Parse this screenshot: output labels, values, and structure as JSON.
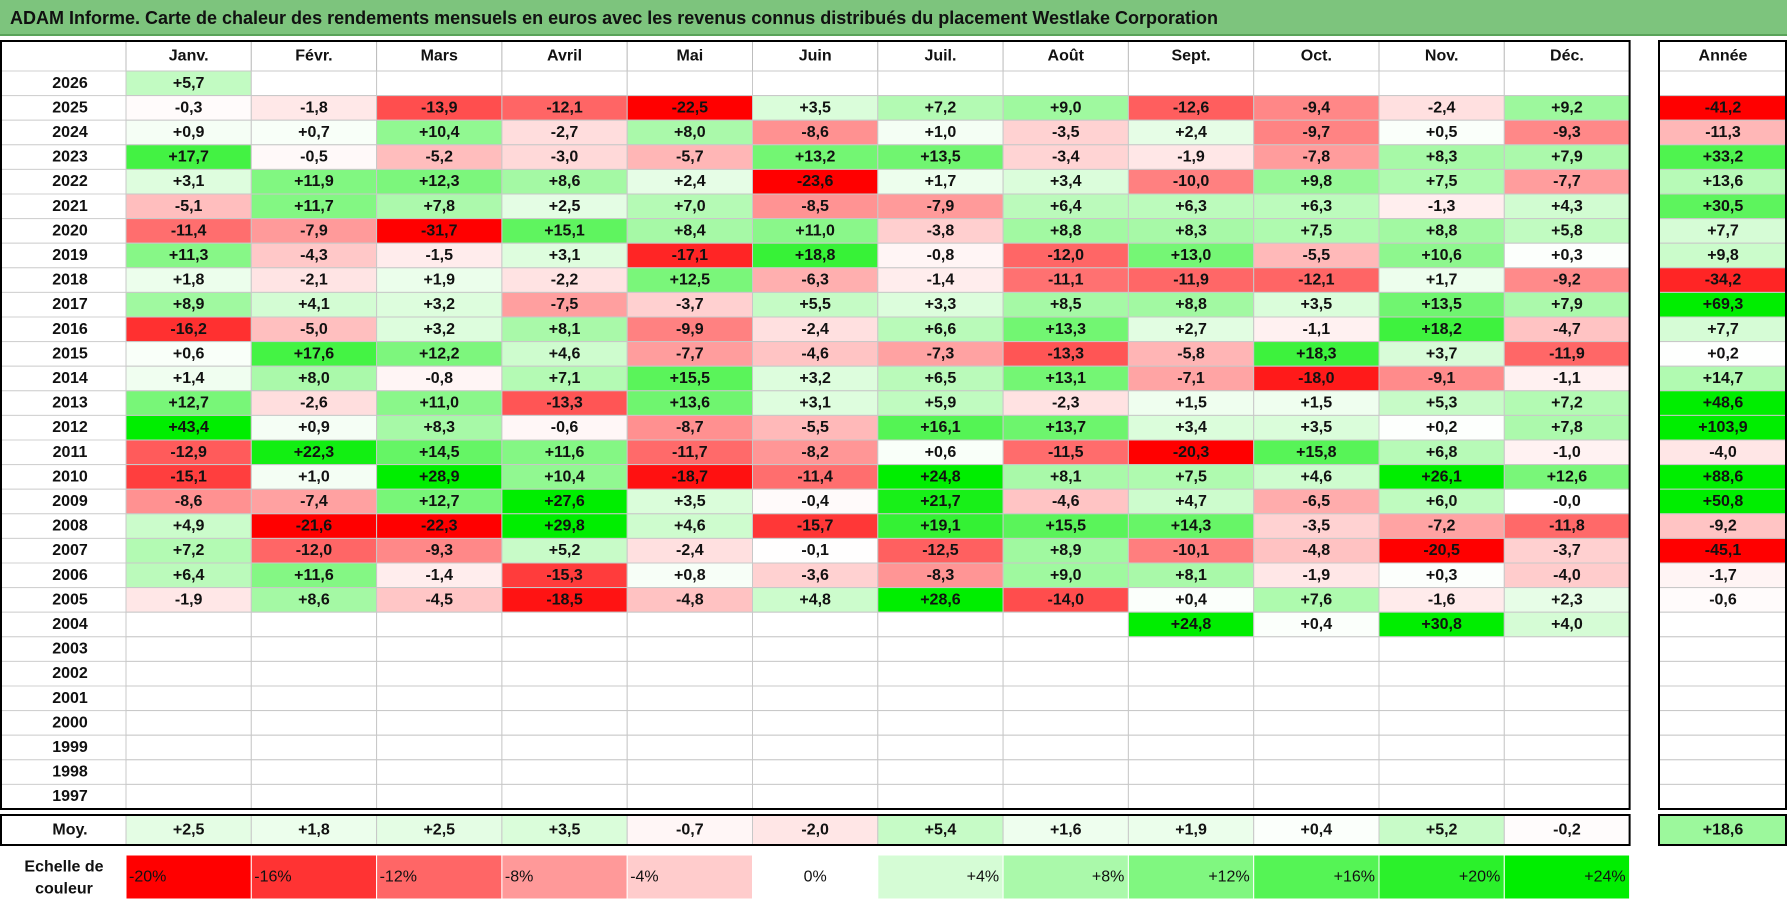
{
  "title": "ADAM Informe. Carte de chaleur des rendements mensuels en euros avec les revenus connus distribués du placement Westlake Corporation",
  "chart_data": {
    "type": "heatmap",
    "months": [
      "Janv.",
      "Févr.",
      "Mars",
      "Avril",
      "Mai",
      "Juin",
      "Juil.",
      "Août",
      "Sept.",
      "Oct.",
      "Nov.",
      "Déc."
    ],
    "year_header": "Année",
    "rows": [
      {
        "year": "2026",
        "values": [
          "+5,7",
          "",
          "",
          "",
          "",
          "",
          "",
          "",
          "",
          "",
          "",
          ""
        ],
        "annual": ""
      },
      {
        "year": "2025",
        "values": [
          "-0,3",
          "-1,8",
          "-13,9",
          "-12,1",
          "-22,5",
          "+3,5",
          "+7,2",
          "+9,0",
          "-12,6",
          "-9,4",
          "-2,4",
          "+9,2"
        ],
        "annual": "-41,2"
      },
      {
        "year": "2024",
        "values": [
          "+0,9",
          "+0,7",
          "+10,4",
          "-2,7",
          "+8,0",
          "-8,6",
          "+1,0",
          "-3,5",
          "+2,4",
          "-9,7",
          "+0,5",
          "-9,3"
        ],
        "annual": "-11,3"
      },
      {
        "year": "2023",
        "values": [
          "+17,7",
          "-0,5",
          "-5,2",
          "-3,0",
          "-5,7",
          "+13,2",
          "+13,5",
          "-3,4",
          "-1,9",
          "-7,8",
          "+8,3",
          "+7,9"
        ],
        "annual": "+33,2"
      },
      {
        "year": "2022",
        "values": [
          "+3,1",
          "+11,9",
          "+12,3",
          "+8,6",
          "+2,4",
          "-23,6",
          "+1,7",
          "+3,4",
          "-10,0",
          "+9,8",
          "+7,5",
          "-7,7"
        ],
        "annual": "+13,6"
      },
      {
        "year": "2021",
        "values": [
          "-5,1",
          "+11,7",
          "+7,8",
          "+2,5",
          "+7,0",
          "-8,5",
          "-7,9",
          "+6,4",
          "+6,3",
          "+6,3",
          "-1,3",
          "+4,3"
        ],
        "annual": "+30,5"
      },
      {
        "year": "2020",
        "values": [
          "-11,4",
          "-7,9",
          "-31,7",
          "+15,1",
          "+8,4",
          "+11,0",
          "-3,8",
          "+8,8",
          "+8,3",
          "+7,5",
          "+8,8",
          "+5,8"
        ],
        "annual": "+7,7"
      },
      {
        "year": "2019",
        "values": [
          "+11,3",
          "-4,3",
          "-1,5",
          "+3,1",
          "-17,1",
          "+18,8",
          "-0,8",
          "-12,0",
          "+13,0",
          "-5,5",
          "+10,6",
          "+0,3"
        ],
        "annual": "+9,8"
      },
      {
        "year": "2018",
        "values": [
          "+1,8",
          "-2,1",
          "+1,9",
          "-2,2",
          "+12,5",
          "-6,3",
          "-1,4",
          "-11,1",
          "-11,9",
          "-12,1",
          "+1,7",
          "-9,2"
        ],
        "annual": "-34,2"
      },
      {
        "year": "2017",
        "values": [
          "+8,9",
          "+4,1",
          "+3,2",
          "-7,5",
          "-3,7",
          "+5,5",
          "+3,3",
          "+8,5",
          "+8,8",
          "+3,5",
          "+13,5",
          "+7,9"
        ],
        "annual": "+69,3"
      },
      {
        "year": "2016",
        "values": [
          "-16,2",
          "-5,0",
          "+3,2",
          "+8,1",
          "-9,9",
          "-2,4",
          "+6,6",
          "+13,3",
          "+2,7",
          "-1,1",
          "+18,2",
          "-4,7"
        ],
        "annual": "+7,7"
      },
      {
        "year": "2015",
        "values": [
          "+0,6",
          "+17,6",
          "+12,2",
          "+4,6",
          "-7,7",
          "-4,6",
          "-7,3",
          "-13,3",
          "-5,8",
          "+18,3",
          "+3,7",
          "-11,9"
        ],
        "annual": "+0,2"
      },
      {
        "year": "2014",
        "values": [
          "+1,4",
          "+8,0",
          "-0,8",
          "+7,1",
          "+15,5",
          "+3,2",
          "+6,5",
          "+13,1",
          "-7,1",
          "-18,0",
          "-9,1",
          "-1,1"
        ],
        "annual": "+14,7"
      },
      {
        "year": "2013",
        "values": [
          "+12,7",
          "-2,6",
          "+11,0",
          "-13,3",
          "+13,6",
          "+3,1",
          "+5,9",
          "-2,3",
          "+1,5",
          "+1,5",
          "+5,3",
          "+7,2"
        ],
        "annual": "+48,6"
      },
      {
        "year": "2012",
        "values": [
          "+43,4",
          "+0,9",
          "+8,3",
          "-0,6",
          "-8,7",
          "-5,5",
          "+16,1",
          "+13,7",
          "+3,4",
          "+3,5",
          "+0,2",
          "+7,8"
        ],
        "annual": "+103,9"
      },
      {
        "year": "2011",
        "values": [
          "-12,9",
          "+22,3",
          "+14,5",
          "+11,6",
          "-11,7",
          "-8,2",
          "+0,6",
          "-11,5",
          "-20,3",
          "+15,8",
          "+6,8",
          "-1,0"
        ],
        "annual": "-4,0"
      },
      {
        "year": "2010",
        "values": [
          "-15,1",
          "+1,0",
          "+28,9",
          "+10,4",
          "-18,7",
          "-11,4",
          "+24,8",
          "+8,1",
          "+7,5",
          "+4,6",
          "+26,1",
          "+12,6"
        ],
        "annual": "+88,6"
      },
      {
        "year": "2009",
        "values": [
          "-8,6",
          "-7,4",
          "+12,7",
          "+27,6",
          "+3,5",
          "-0,4",
          "+21,7",
          "-4,6",
          "+4,7",
          "-6,5",
          "+6,0",
          "-0,0"
        ],
        "annual": "+50,8"
      },
      {
        "year": "2008",
        "values": [
          "+4,9",
          "-21,6",
          "-22,3",
          "+29,8",
          "+4,6",
          "-15,7",
          "+19,1",
          "+15,5",
          "+14,3",
          "-3,5",
          "-7,2",
          "-11,8"
        ],
        "annual": "-9,2"
      },
      {
        "year": "2007",
        "values": [
          "+7,2",
          "-12,0",
          "-9,3",
          "+5,2",
          "-2,4",
          "-0,1",
          "-12,5",
          "+8,9",
          "-10,1",
          "-4,8",
          "-20,5",
          "-3,7"
        ],
        "annual": "-45,1"
      },
      {
        "year": "2006",
        "values": [
          "+6,4",
          "+11,6",
          "-1,4",
          "-15,3",
          "+0,8",
          "-3,6",
          "-8,3",
          "+9,0",
          "+8,1",
          "-1,9",
          "+0,3",
          "-4,0"
        ],
        "annual": "-1,7"
      },
      {
        "year": "2005",
        "values": [
          "-1,9",
          "+8,6",
          "-4,5",
          "-18,5",
          "-4,8",
          "+4,8",
          "+28,6",
          "-14,0",
          "+0,4",
          "+7,6",
          "-1,6",
          "+2,3"
        ],
        "annual": "-0,6"
      },
      {
        "year": "2004",
        "values": [
          "",
          "",
          "",
          "",
          "",
          "",
          "",
          "",
          "+24,8",
          "+0,4",
          "+30,8",
          "+4,0"
        ],
        "annual": ""
      },
      {
        "year": "2003",
        "values": [
          "",
          "",
          "",
          "",
          "",
          "",
          "",
          "",
          "",
          "",
          "",
          ""
        ],
        "annual": ""
      },
      {
        "year": "2002",
        "values": [
          "",
          "",
          "",
          "",
          "",
          "",
          "",
          "",
          "",
          "",
          "",
          ""
        ],
        "annual": ""
      },
      {
        "year": "2001",
        "values": [
          "",
          "",
          "",
          "",
          "",
          "",
          "",
          "",
          "",
          "",
          "",
          ""
        ],
        "annual": ""
      },
      {
        "year": "2000",
        "values": [
          "",
          "",
          "",
          "",
          "",
          "",
          "",
          "",
          "",
          "",
          "",
          ""
        ],
        "annual": ""
      },
      {
        "year": "1999",
        "values": [
          "",
          "",
          "",
          "",
          "",
          "",
          "",
          "",
          "",
          "",
          "",
          ""
        ],
        "annual": ""
      },
      {
        "year": "1998",
        "values": [
          "",
          "",
          "",
          "",
          "",
          "",
          "",
          "",
          "",
          "",
          "",
          ""
        ],
        "annual": ""
      },
      {
        "year": "1997",
        "values": [
          "",
          "",
          "",
          "",
          "",
          "",
          "",
          "",
          "",
          "",
          "",
          ""
        ],
        "annual": ""
      }
    ],
    "average": {
      "label": "Moy.",
      "values": [
        "+2,5",
        "+1,8",
        "+2,5",
        "+3,5",
        "-0,7",
        "-2,0",
        "+5,4",
        "+1,6",
        "+1,9",
        "+0,4",
        "+5,2",
        "-0,2"
      ],
      "annual": "+18,6"
    },
    "scale": {
      "label_line1": "Echelle de",
      "label_line2": "couleur",
      "steps": [
        {
          "label": "-20%",
          "value": -20
        },
        {
          "label": "-16%",
          "value": -16
        },
        {
          "label": "-12%",
          "value": -12
        },
        {
          "label": "-8%",
          "value": -8
        },
        {
          "label": "-4%",
          "value": -4
        },
        {
          "label": "0%",
          "value": 0
        },
        {
          "label": "+4%",
          "value": 4
        },
        {
          "label": "+8%",
          "value": 8
        },
        {
          "label": "+12%",
          "value": 12
        },
        {
          "label": "+16%",
          "value": 16
        },
        {
          "label": "+20%",
          "value": 20
        },
        {
          "label": "+24%",
          "value": 24
        }
      ]
    },
    "colors": {
      "negative_max": "#ff0000",
      "neutral": "#ffffff",
      "positive_max": "#00ee00",
      "title_bg": "#7dc47d"
    }
  }
}
